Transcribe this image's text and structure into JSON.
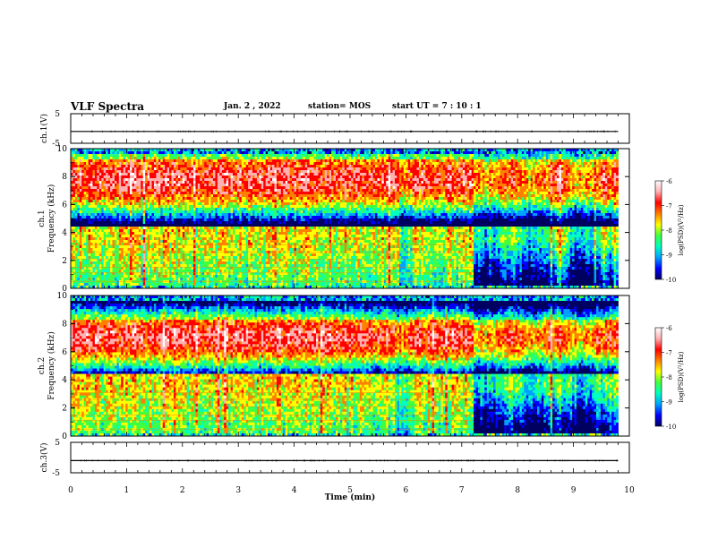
{
  "header": {
    "title": "VLF Spectra",
    "date": "Jan. 2 , 2022",
    "station": "station= MOS",
    "start_ut": "start UT = 7 : 10 : 1"
  },
  "colors": {
    "scale": [
      "#000060",
      "#0000ff",
      "#00a0ff",
      "#00ffc0",
      "#40ff40",
      "#ffff00",
      "#ff8000",
      "#ff0000",
      "#ffb0b0",
      "#ffffff"
    ]
  },
  "chart_data": [
    {
      "type": "line",
      "panel": "ch1-waveform",
      "ylabel": "ch.1(V)",
      "ylim": [
        -5,
        5
      ],
      "y_ticks": [
        "5",
        "-5"
      ],
      "xlim": [
        0,
        10
      ],
      "x": [
        0,
        9.8
      ],
      "values": [
        -1,
        -1
      ]
    },
    {
      "type": "heatmap",
      "panel": "ch1-spectrogram",
      "ylabel": "ch.1\nFrequency (kHz)",
      "ylim": [
        0,
        10
      ],
      "y_ticks": [
        "0",
        "2",
        "4",
        "6",
        "8",
        "10"
      ],
      "xlim": [
        0,
        10
      ],
      "data_extent_min": 9.8,
      "colorbar": {
        "label": "log(PSD)(V²/Hz)",
        "range": [
          -10,
          -6
        ],
        "ticks": [
          "-6",
          "-7",
          "-8",
          "-9",
          "-10"
        ]
      },
      "band_center_khz": 7.8,
      "band_halfwidth_khz": 1.5,
      "quiet_after_min": 7.2
    },
    {
      "type": "heatmap",
      "panel": "ch2-spectrogram",
      "ylabel": "ch.2\nFrequency (kHz)",
      "ylim": [
        0,
        10
      ],
      "y_ticks": [
        "0",
        "2",
        "4",
        "6",
        "8",
        "10"
      ],
      "xlim": [
        0,
        10
      ],
      "data_extent_min": 9.8,
      "colorbar": {
        "label": "log(PSD)(V²/Hz)",
        "range": [
          -10,
          -6
        ],
        "ticks": [
          "-6",
          "-7",
          "-8",
          "-9",
          "-10"
        ]
      },
      "band_center_khz": 7.0,
      "band_halfwidth_khz": 1.3,
      "quiet_after_min": 7.2
    },
    {
      "type": "line",
      "panel": "ch3-waveform",
      "ylabel": "ch.3(V)",
      "ylim": [
        -5,
        5
      ],
      "y_ticks": [
        "5",
        "-5"
      ],
      "xlim": [
        0,
        10
      ],
      "x": [
        0,
        9.8
      ],
      "values": [
        -1,
        -1
      ]
    }
  ],
  "xaxis": {
    "label": "Time (min)",
    "ticks": [
      "0",
      "1",
      "2",
      "3",
      "4",
      "5",
      "6",
      "7",
      "8",
      "9",
      "10"
    ]
  }
}
